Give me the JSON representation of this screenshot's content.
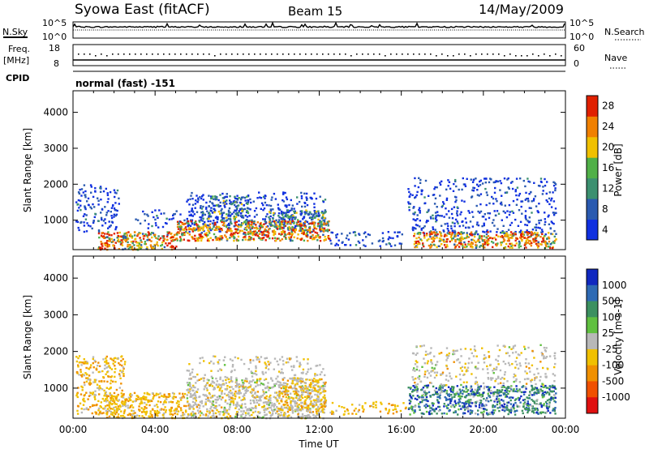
{
  "header": {
    "station": "Syowa East (fitACF)",
    "beam": "Beam 15",
    "date": "14/May/2009"
  },
  "panels": {
    "nsky": {
      "left_label": "N.Sky",
      "right_label": "N.Search",
      "tick_top": "10^5",
      "tick_bottom": "10^0"
    },
    "freq": {
      "left_label_1": "Freq.",
      "left_label_2": "[MHz]",
      "right_label": "Nave",
      "left_ticks": [
        "18",
        "8"
      ],
      "right_ticks": [
        "60",
        "0"
      ]
    },
    "cpid": {
      "label": "CPID",
      "program": "normal (fast) -151"
    }
  },
  "chart_data": [
    {
      "type": "heatmap",
      "title": "",
      "xlabel": "",
      "ylabel": "Slant Range [km]",
      "yticks": [
        "1000",
        "2000",
        "3000",
        "4000"
      ],
      "ylim": [
        180,
        4600
      ],
      "xlim": [
        0,
        24
      ],
      "colorbar": {
        "label": "Power [dB]",
        "ticks": [
          "4",
          "8",
          "12",
          "16",
          "20",
          "24",
          "28"
        ],
        "colors": [
          "#1030e0",
          "#2a5ab0",
          "#3c9070",
          "#50b048",
          "#f0c000",
          "#f08000",
          "#e02000"
        ]
      }
    },
    {
      "type": "heatmap",
      "title": "",
      "xlabel": "Time UT",
      "ylabel": "Slant Range [km]",
      "yticks": [
        "1000",
        "2000",
        "3000",
        "4000"
      ],
      "ylim": [
        180,
        4600
      ],
      "xlim": [
        0,
        24
      ],
      "xticks": [
        "00:00",
        "04:00",
        "08:00",
        "12:00",
        "16:00",
        "20:00",
        "00:00"
      ],
      "colorbar": {
        "label": "Velocity [m s-1]",
        "ticks": [
          "1000",
          "500",
          "100",
          "25",
          "-25",
          "-100",
          "-500",
          "-1000"
        ],
        "colors": [
          "#1028c0",
          "#2e6ab4",
          "#3c9060",
          "#60c040",
          "#b8b8b8",
          "#f0c000",
          "#f09000",
          "#f05000",
          "#e01010"
        ]
      }
    }
  ]
}
